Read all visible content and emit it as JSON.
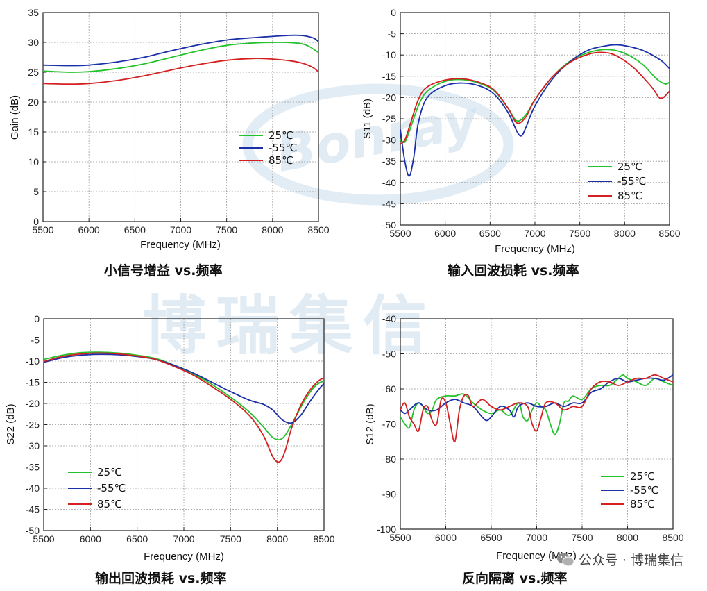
{
  "watermark": {
    "text": "博瑞集信",
    "logo_text": "Bonray"
  },
  "footer": {
    "text": "公众号 · 博瑞集信"
  },
  "colors": {
    "c25": "#22c22a",
    "cm55": "#1b2fa8",
    "c85": "#d42020",
    "grid": "#9a9a9a"
  },
  "chart_data": [
    {
      "type": "line",
      "caption": "小信号增益 vs.频率",
      "xlabel": "Frequency (MHz)",
      "ylabel": "Gain (dB)",
      "xlim": [
        5500,
        8500
      ],
      "ylim": [
        0,
        35
      ],
      "xticks": [
        5500,
        6000,
        6500,
        7000,
        7500,
        8000,
        8500
      ],
      "yticks": [
        0,
        5,
        10,
        15,
        20,
        25,
        30,
        35
      ],
      "grid": true,
      "legend_position": "middle-right",
      "series": [
        {
          "name": "25℃",
          "color": "#22c22a",
          "x": [
            5500,
            5800,
            6000,
            6300,
            6600,
            6900,
            7200,
            7500,
            7800,
            8100,
            8300,
            8400,
            8500
          ],
          "y": [
            25.2,
            25.0,
            25.1,
            25.6,
            26.4,
            27.5,
            28.6,
            29.5,
            29.9,
            30.0,
            29.8,
            29.3,
            28.3
          ]
        },
        {
          "name": "-55℃",
          "color": "#1b2fa8",
          "x": [
            5500,
            5800,
            6000,
            6300,
            6600,
            6900,
            7200,
            7500,
            7800,
            8100,
            8250,
            8350,
            8450,
            8500
          ],
          "y": [
            26.2,
            26.1,
            26.2,
            26.7,
            27.5,
            28.6,
            29.6,
            30.4,
            30.8,
            31.1,
            31.2,
            31.1,
            30.7,
            30.1
          ]
        },
        {
          "name": "85℃",
          "color": "#d42020",
          "x": [
            5500,
            5800,
            6000,
            6300,
            6600,
            6900,
            7200,
            7500,
            7800,
            8000,
            8200,
            8350,
            8450,
            8500
          ],
          "y": [
            23.1,
            23.0,
            23.1,
            23.6,
            24.4,
            25.4,
            26.3,
            27.0,
            27.3,
            27.2,
            26.9,
            26.4,
            25.7,
            25.0
          ]
        }
      ]
    },
    {
      "type": "line",
      "caption": "输入回波损耗 vs.频率",
      "xlabel": "Frequency (MHz)",
      "ylabel": "S11 (dB)",
      "xlim": [
        5500,
        8500
      ],
      "ylim": [
        -50,
        0
      ],
      "xticks": [
        5500,
        6000,
        6500,
        7000,
        7500,
        8000,
        8500
      ],
      "yticks": [
        0,
        -5,
        -10,
        -15,
        -20,
        -25,
        -30,
        -35,
        -40,
        -45,
        -50
      ],
      "grid": true,
      "legend_position": "bottom-right",
      "series": [
        {
          "name": "25℃",
          "color": "#22c22a",
          "x": [
            5500,
            5550,
            5600,
            5700,
            5800,
            6000,
            6200,
            6400,
            6550,
            6700,
            6800,
            6900,
            7000,
            7200,
            7400,
            7600,
            7800,
            8000,
            8200,
            8350,
            8450,
            8500
          ],
          "y": [
            -30,
            -30.5,
            -28,
            -22,
            -18.5,
            -16.2,
            -15.8,
            -16.8,
            -18.5,
            -22.5,
            -25.5,
            -24,
            -20.5,
            -15,
            -11.3,
            -9.4,
            -8.7,
            -9.6,
            -12.2,
            -15.5,
            -16.8,
            -16.4
          ]
        },
        {
          "name": "-55℃",
          "color": "#1b2fa8",
          "x": [
            5500,
            5550,
            5600,
            5650,
            5700,
            5800,
            6000,
            6200,
            6400,
            6550,
            6700,
            6800,
            6850,
            6900,
            7000,
            7200,
            7400,
            7600,
            7800,
            7900,
            8000,
            8200,
            8400,
            8500
          ],
          "y": [
            -27.5,
            -35,
            -38.5,
            -34,
            -26,
            -20,
            -17.2,
            -16.6,
            -17.4,
            -19.3,
            -23.5,
            -28,
            -29,
            -27,
            -22,
            -15.5,
            -11.4,
            -8.8,
            -7.8,
            -7.6,
            -7.8,
            -8.9,
            -11.2,
            -13.2
          ]
        },
        {
          "name": "85℃",
          "color": "#d42020",
          "x": [
            5500,
            5550,
            5600,
            5700,
            5800,
            6000,
            6200,
            6400,
            6550,
            6700,
            6800,
            6900,
            7000,
            7200,
            7400,
            7600,
            7750,
            7900,
            8100,
            8300,
            8400,
            8500
          ],
          "y": [
            -31,
            -30,
            -27,
            -20.5,
            -17.5,
            -15.9,
            -15.6,
            -16.6,
            -18.3,
            -22.5,
            -26,
            -24.5,
            -20.5,
            -15,
            -11.6,
            -9.8,
            -9.4,
            -10.1,
            -13,
            -17.5,
            -20.2,
            -18.5
          ]
        }
      ]
    },
    {
      "type": "line",
      "caption": "输出回波损耗 vs.频率",
      "xlabel": "Frequency (MHz)",
      "ylabel": "S22 (dB)",
      "xlim": [
        5500,
        8500
      ],
      "ylim": [
        -50,
        0
      ],
      "xticks": [
        5500,
        6000,
        6500,
        7000,
        7500,
        8000,
        8500
      ],
      "yticks": [
        0,
        -5,
        -10,
        -15,
        -20,
        -25,
        -30,
        -35,
        -40,
        -45,
        -50
      ],
      "grid": true,
      "legend_position": "bottom-left",
      "series": [
        {
          "name": "25℃",
          "color": "#22c22a",
          "x": [
            5500,
            5700,
            5900,
            6100,
            6300,
            6500,
            6700,
            6900,
            7100,
            7300,
            7500,
            7700,
            7850,
            7950,
            8030,
            8100,
            8200,
            8300,
            8400,
            8500
          ],
          "y": [
            -9.6,
            -8.6,
            -8.0,
            -7.9,
            -8.1,
            -8.6,
            -9.4,
            -11,
            -13,
            -15.5,
            -18.5,
            -22,
            -25.5,
            -28,
            -28.5,
            -27,
            -23,
            -19,
            -16,
            -14.5
          ]
        },
        {
          "name": "-55℃",
          "color": "#1b2fa8",
          "x": [
            5500,
            5700,
            5900,
            6100,
            6300,
            6500,
            6700,
            6900,
            7100,
            7300,
            7500,
            7700,
            7850,
            7950,
            8050,
            8150,
            8250,
            8350,
            8450,
            8500
          ],
          "y": [
            -10.3,
            -9.2,
            -8.6,
            -8.4,
            -8.5,
            -8.9,
            -9.6,
            -11,
            -12.8,
            -15,
            -17.2,
            -19.2,
            -20.2,
            -21.5,
            -23.8,
            -24.6,
            -22.8,
            -19.5,
            -16.5,
            -15.3
          ]
        },
        {
          "name": "85℃",
          "color": "#d42020",
          "x": [
            5500,
            5700,
            5900,
            6100,
            6300,
            6500,
            6700,
            6900,
            7100,
            7300,
            7500,
            7700,
            7850,
            7950,
            8020,
            8080,
            8150,
            8250,
            8350,
            8450,
            8500
          ],
          "y": [
            -10.1,
            -8.9,
            -8.3,
            -8.1,
            -8.3,
            -8.8,
            -9.6,
            -11.3,
            -13.3,
            -16,
            -19,
            -22.8,
            -27.5,
            -32.5,
            -33.8,
            -31.5,
            -26,
            -20.5,
            -16.8,
            -14.5,
            -14
          ]
        }
      ]
    },
    {
      "type": "line",
      "caption": "反向隔离 vs.频率",
      "xlabel": "Frequency (MHz)",
      "ylabel": "S12 (dB)",
      "xlim": [
        5500,
        8500
      ],
      "ylim": [
        -100,
        -40
      ],
      "xticks": [
        5500,
        6000,
        6500,
        7000,
        7500,
        8000,
        8500
      ],
      "yticks": [
        -40,
        -50,
        -60,
        -70,
        -80,
        -90,
        -100
      ],
      "grid": true,
      "legend_position": "bottom-right",
      "series": [
        {
          "name": "25℃",
          "color": "#22c22a",
          "x": [
            5500,
            5550,
            5600,
            5650,
            5700,
            5750,
            5800,
            5850,
            5900,
            6000,
            6100,
            6200,
            6300,
            6400,
            6500,
            6600,
            6700,
            6800,
            6850,
            6900,
            6950,
            7000,
            7050,
            7100,
            7150,
            7200,
            7250,
            7300,
            7350,
            7400,
            7500,
            7600,
            7700,
            7800,
            7900,
            7950,
            8000,
            8100,
            8200,
            8300,
            8400,
            8500
          ],
          "y": [
            -68,
            -70,
            -71,
            -66,
            -64,
            -65,
            -67,
            -66,
            -63,
            -62,
            -62,
            -61.5,
            -64,
            -66,
            -67,
            -66,
            -67.5,
            -64,
            -68,
            -69,
            -66,
            -64,
            -65,
            -66,
            -70,
            -73,
            -70,
            -64,
            -63.5,
            -62,
            -63,
            -60,
            -59,
            -59,
            -57,
            -56,
            -57,
            -58,
            -59,
            -57,
            -58,
            -59
          ]
        },
        {
          "name": "-55℃",
          "color": "#1b2fa8",
          "x": [
            5500,
            5550,
            5600,
            5700,
            5800,
            5900,
            6000,
            6100,
            6200,
            6300,
            6400,
            6450,
            6500,
            6600,
            6700,
            6750,
            6800,
            6900,
            7000,
            7100,
            7200,
            7300,
            7400,
            7500,
            7600,
            7700,
            7800,
            7900,
            8000,
            8100,
            8200,
            8300,
            8400,
            8500
          ],
          "y": [
            -66,
            -67,
            -66,
            -64,
            -66,
            -66,
            -64,
            -63,
            -64,
            -65,
            -68,
            -69,
            -68,
            -65,
            -66,
            -68,
            -65,
            -64,
            -65,
            -65,
            -64,
            -65,
            -64,
            -64,
            -61,
            -60,
            -58,
            -57,
            -58,
            -57.5,
            -57,
            -57,
            -57.5,
            -56
          ]
        },
        {
          "name": "85℃",
          "color": "#d42020",
          "x": [
            5500,
            5550,
            5600,
            5650,
            5700,
            5750,
            5800,
            5850,
            5900,
            5950,
            6000,
            6050,
            6100,
            6150,
            6200,
            6250,
            6300,
            6400,
            6500,
            6600,
            6700,
            6800,
            6900,
            6950,
            7000,
            7050,
            7100,
            7200,
            7300,
            7400,
            7500,
            7600,
            7700,
            7800,
            7900,
            8000,
            8100,
            8200,
            8300,
            8400,
            8500
          ],
          "y": [
            -66,
            -64,
            -68,
            -70,
            -72,
            -66,
            -65,
            -69,
            -70,
            -63,
            -64,
            -70,
            -75,
            -66,
            -62,
            -62,
            -65,
            -63,
            -65,
            -66,
            -65,
            -64,
            -65,
            -70,
            -72,
            -68,
            -64,
            -64,
            -66,
            -65,
            -65,
            -60,
            -58,
            -58,
            -59,
            -58,
            -57,
            -57,
            -56,
            -57,
            -58
          ]
        }
      ]
    }
  ]
}
